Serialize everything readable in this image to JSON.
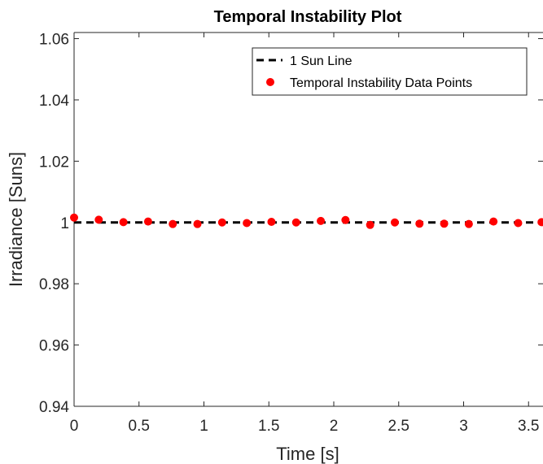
{
  "chart_data": {
    "type": "scatter",
    "title": "Temporal Instability Plot",
    "xlabel": "Time [s]",
    "ylabel": "Irradiance [Suns]",
    "xlim": [
      0,
      3.6
    ],
    "ylim": [
      0.94,
      1.062
    ],
    "x_ticks": [
      0,
      0.5,
      1,
      1.5,
      2,
      2.5,
      3,
      3.5
    ],
    "x_tick_labels": [
      "0",
      "0.5",
      "1",
      "1.5",
      "2",
      "2.5",
      "3",
      "3.5"
    ],
    "y_ticks": [
      0.94,
      0.96,
      0.98,
      1,
      1.02,
      1.04,
      1.06
    ],
    "y_tick_labels": [
      "0.94",
      "0.96",
      "0.98",
      "1",
      "1.02",
      "1.04",
      "1.06"
    ],
    "grid": false,
    "legend_position": "top-right",
    "reference_line": {
      "name": "1 Sun Line",
      "y": 1,
      "style": "dashed",
      "color": "#000000"
    },
    "series": [
      {
        "name": "Temporal Instability Data Points",
        "color": "#ff0000",
        "marker": "circle",
        "x": [
          0,
          0.19,
          0.38,
          0.57,
          0.76,
          0.95,
          1.14,
          1.33,
          1.52,
          1.71,
          1.9,
          2.09,
          2.28,
          2.47,
          2.66,
          2.85,
          3.04,
          3.23,
          3.42,
          3.6
        ],
        "y": [
          1.0016,
          1.0009,
          1.0001,
          1.0003,
          0.9995,
          0.9995,
          1.0,
          0.9998,
          1.0002,
          1.0,
          1.0005,
          1.0008,
          0.9992,
          1.0,
          0.9996,
          0.9996,
          0.9995,
          1.0003,
          0.9998,
          1.0001
        ]
      }
    ]
  }
}
